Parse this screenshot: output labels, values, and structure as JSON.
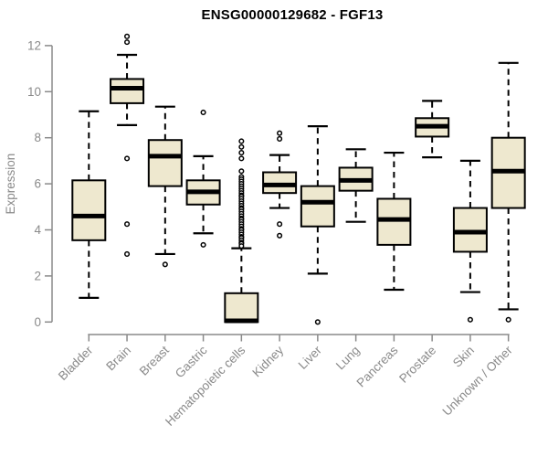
{
  "title": "ENSG00000129682 - FGF13",
  "colors": {
    "background": "#FFFFFF",
    "box_fill": "#EEE8CF",
    "box_border": "#000000",
    "median_line": "#000000",
    "whisker": "#000000",
    "outlier_stroke": "#000000",
    "axis": "#8A8A8A",
    "tick_label": "#8A8A8A",
    "title_color": "#000000"
  },
  "chart_data": {
    "type": "boxplot",
    "title": "ENSG00000129682 - FGF13",
    "xlabel": "",
    "ylabel": "Expression",
    "ylim": [
      0,
      12
    ],
    "yticks": [
      0,
      2,
      4,
      6,
      8,
      10,
      12
    ],
    "grid": false,
    "legend": "none",
    "categories": [
      "Bladder",
      "Brain",
      "Breast",
      "Gastric",
      "Hematopoietic cells",
      "Kidney",
      "Liver",
      "Lung",
      "Pancreas",
      "Prostate",
      "Skin",
      "Unknown / Other"
    ],
    "series": [
      {
        "name": "Bladder",
        "whisker_low": 1.05,
        "q1": 3.55,
        "median": 4.6,
        "q3": 6.15,
        "whisker_high": 9.15,
        "outliers": []
      },
      {
        "name": "Brain",
        "whisker_low": 8.55,
        "q1": 9.5,
        "median": 10.15,
        "q3": 10.55,
        "whisker_high": 11.6,
        "outliers": [
          12.4,
          12.15,
          7.1,
          4.25,
          2.95
        ]
      },
      {
        "name": "Breast",
        "whisker_low": 2.95,
        "q1": 5.9,
        "median": 7.2,
        "q3": 7.9,
        "whisker_high": 9.35,
        "outliers": [
          2.5
        ]
      },
      {
        "name": "Gastric",
        "whisker_low": 3.85,
        "q1": 5.1,
        "median": 5.65,
        "q3": 6.15,
        "whisker_high": 7.2,
        "outliers": [
          9.1,
          3.35
        ]
      },
      {
        "name": "Hematopoietic cells",
        "whisker_low": 0.0,
        "q1": 0.0,
        "median": 0.05,
        "q3": 1.25,
        "whisker_high": 3.2,
        "outliers": [
          7.85,
          7.6,
          7.35,
          7.1,
          6.55,
          6.3,
          6.2,
          6.1,
          6.0,
          5.9,
          5.8,
          5.7,
          5.6,
          5.5,
          5.45,
          5.35,
          5.25,
          5.15,
          5.05,
          4.95,
          4.9,
          4.8,
          4.7,
          4.6,
          4.5,
          4.45,
          4.35,
          4.25,
          4.15,
          4.05,
          4.0,
          3.9,
          3.8,
          3.7,
          3.65,
          3.55,
          3.45,
          3.4,
          3.3
        ]
      },
      {
        "name": "Kidney",
        "whisker_low": 4.95,
        "q1": 5.6,
        "median": 5.95,
        "q3": 6.5,
        "whisker_high": 7.25,
        "outliers": [
          8.2,
          7.95,
          4.25,
          3.75
        ]
      },
      {
        "name": "Liver",
        "whisker_low": 2.1,
        "q1": 4.15,
        "median": 5.2,
        "q3": 5.9,
        "whisker_high": 8.5,
        "outliers": [
          0.0
        ]
      },
      {
        "name": "Lung",
        "whisker_low": 4.35,
        "q1": 5.7,
        "median": 6.15,
        "q3": 6.7,
        "whisker_high": 7.5,
        "outliers": []
      },
      {
        "name": "Pancreas",
        "whisker_low": 1.4,
        "q1": 3.35,
        "median": 4.45,
        "q3": 5.35,
        "whisker_high": 7.35,
        "outliers": []
      },
      {
        "name": "Prostate",
        "whisker_low": 7.15,
        "q1": 8.05,
        "median": 8.5,
        "q3": 8.85,
        "whisker_high": 9.6,
        "outliers": []
      },
      {
        "name": "Skin",
        "whisker_low": 1.3,
        "q1": 3.05,
        "median": 3.9,
        "q3": 4.95,
        "whisker_high": 7.0,
        "outliers": [
          0.1
        ]
      },
      {
        "name": "Unknown / Other",
        "whisker_low": 0.55,
        "q1": 4.95,
        "median": 6.55,
        "q3": 8.0,
        "whisker_high": 11.25,
        "outliers": [
          0.1
        ]
      }
    ]
  }
}
